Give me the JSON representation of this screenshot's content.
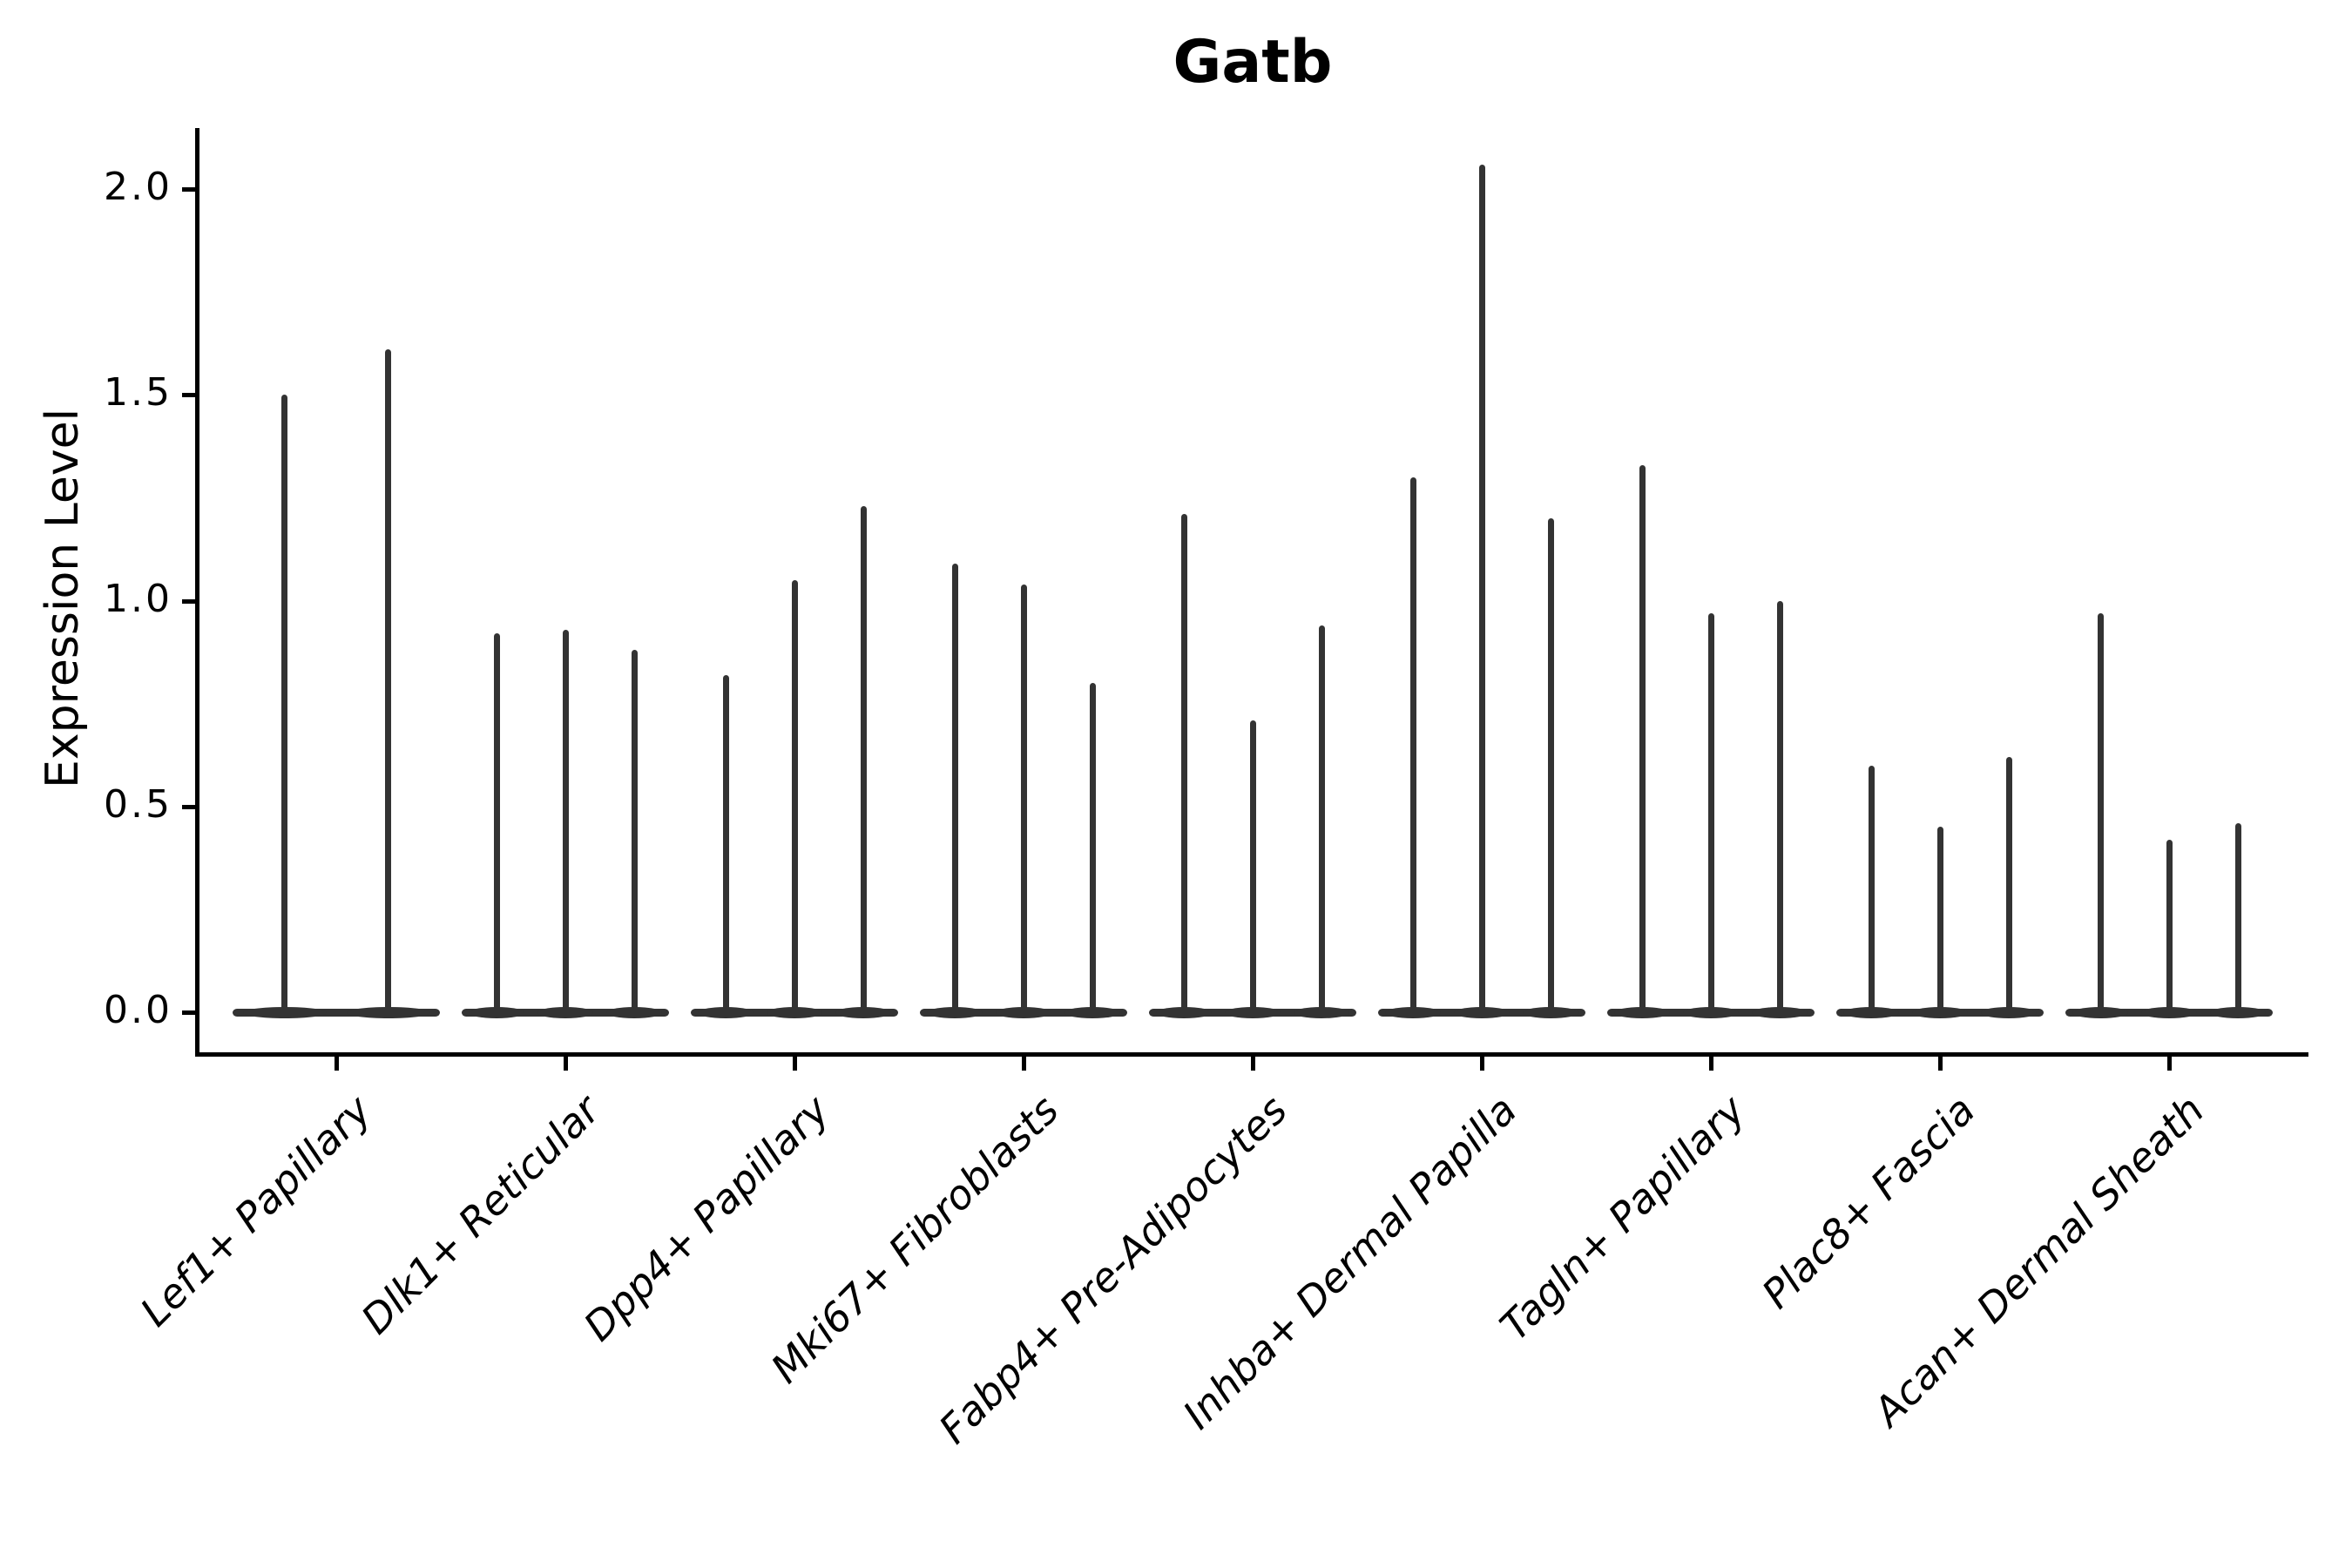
{
  "chart_data": {
    "type": "violin",
    "title": "Gatb",
    "ylabel": "Expression Level",
    "xlabel": "",
    "ylim": [
      -0.1,
      2.15
    ],
    "yticks": [
      "0.0",
      "0.5",
      "1.0",
      "1.5",
      "2.0"
    ],
    "grid": false,
    "legend": false,
    "background": "#ffffff",
    "colors": {
      "violin": "#333333",
      "axis": "#000000",
      "text": "#000000"
    },
    "categories": [
      "Lef1+ Papillary",
      "Dlk1+ Reticular",
      "Dpp4+ Papillary",
      "Mki67+ Fibroblasts",
      "Fabp4+ Pre-Adipocytes",
      "Inhba+ Dermal Papilla",
      "Tagln+ Papillary",
      "Plac8+ Fascia",
      "Acan+ Dermal Sheath"
    ],
    "series": [
      {
        "category": "Lef1+ Papillary",
        "violin_peaks": [
          1.5,
          1.61
        ]
      },
      {
        "category": "Dlk1+ Reticular",
        "violin_peaks": [
          0.92,
          0.93,
          0.88
        ]
      },
      {
        "category": "Dpp4+ Papillary",
        "violin_peaks": [
          0.82,
          1.05,
          1.23
        ]
      },
      {
        "category": "Mki67+ Fibroblasts",
        "violin_peaks": [
          1.09,
          1.04,
          0.8
        ]
      },
      {
        "category": "Fabp4+ Pre-Adipocytes",
        "violin_peaks": [
          1.21,
          0.71,
          0.94
        ]
      },
      {
        "category": "Inhba+ Dermal Papilla",
        "violin_peaks": [
          1.3,
          2.06,
          1.2
        ]
      },
      {
        "category": "Tagln+ Papillary",
        "violin_peaks": [
          1.33,
          0.97,
          1.0
        ]
      },
      {
        "category": "Plac8+ Fascia",
        "violin_peaks": [
          0.6,
          0.45,
          0.62
        ]
      },
      {
        "category": "Acan+ Dermal Sheath",
        "violin_peaks": [
          0.97,
          0.42,
          0.46
        ]
      }
    ],
    "note": "All violins collapse to a flat base at Expression Level 0 with a single thin density spike; peak values above are the top of each spike, left to right within each category."
  }
}
